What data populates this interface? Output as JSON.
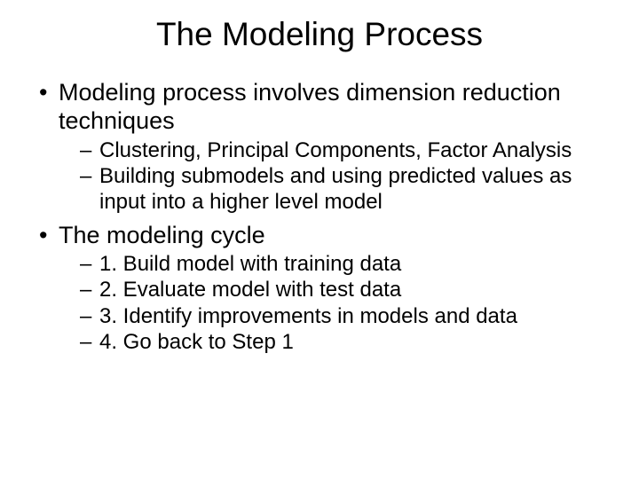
{
  "title": "The Modeling Process",
  "bullets": [
    {
      "text": "Modeling process involves dimension reduction techniques",
      "sub": [
        "Clustering, Principal Components, Factor Analysis",
        "Building submodels and using predicted values as input into a higher level model"
      ]
    },
    {
      "text": "The modeling cycle",
      "sub": [
        "1. Build model with training data",
        "2. Evaluate model with test data",
        "3. Identify improvements in models and data",
        "4. Go back to Step 1"
      ]
    }
  ],
  "colors": {
    "background": "#ffffff",
    "text": "#000000"
  },
  "fonts": {
    "title_size": 37,
    "level1_size": 27,
    "level2_size": 24,
    "family": "Arial"
  }
}
